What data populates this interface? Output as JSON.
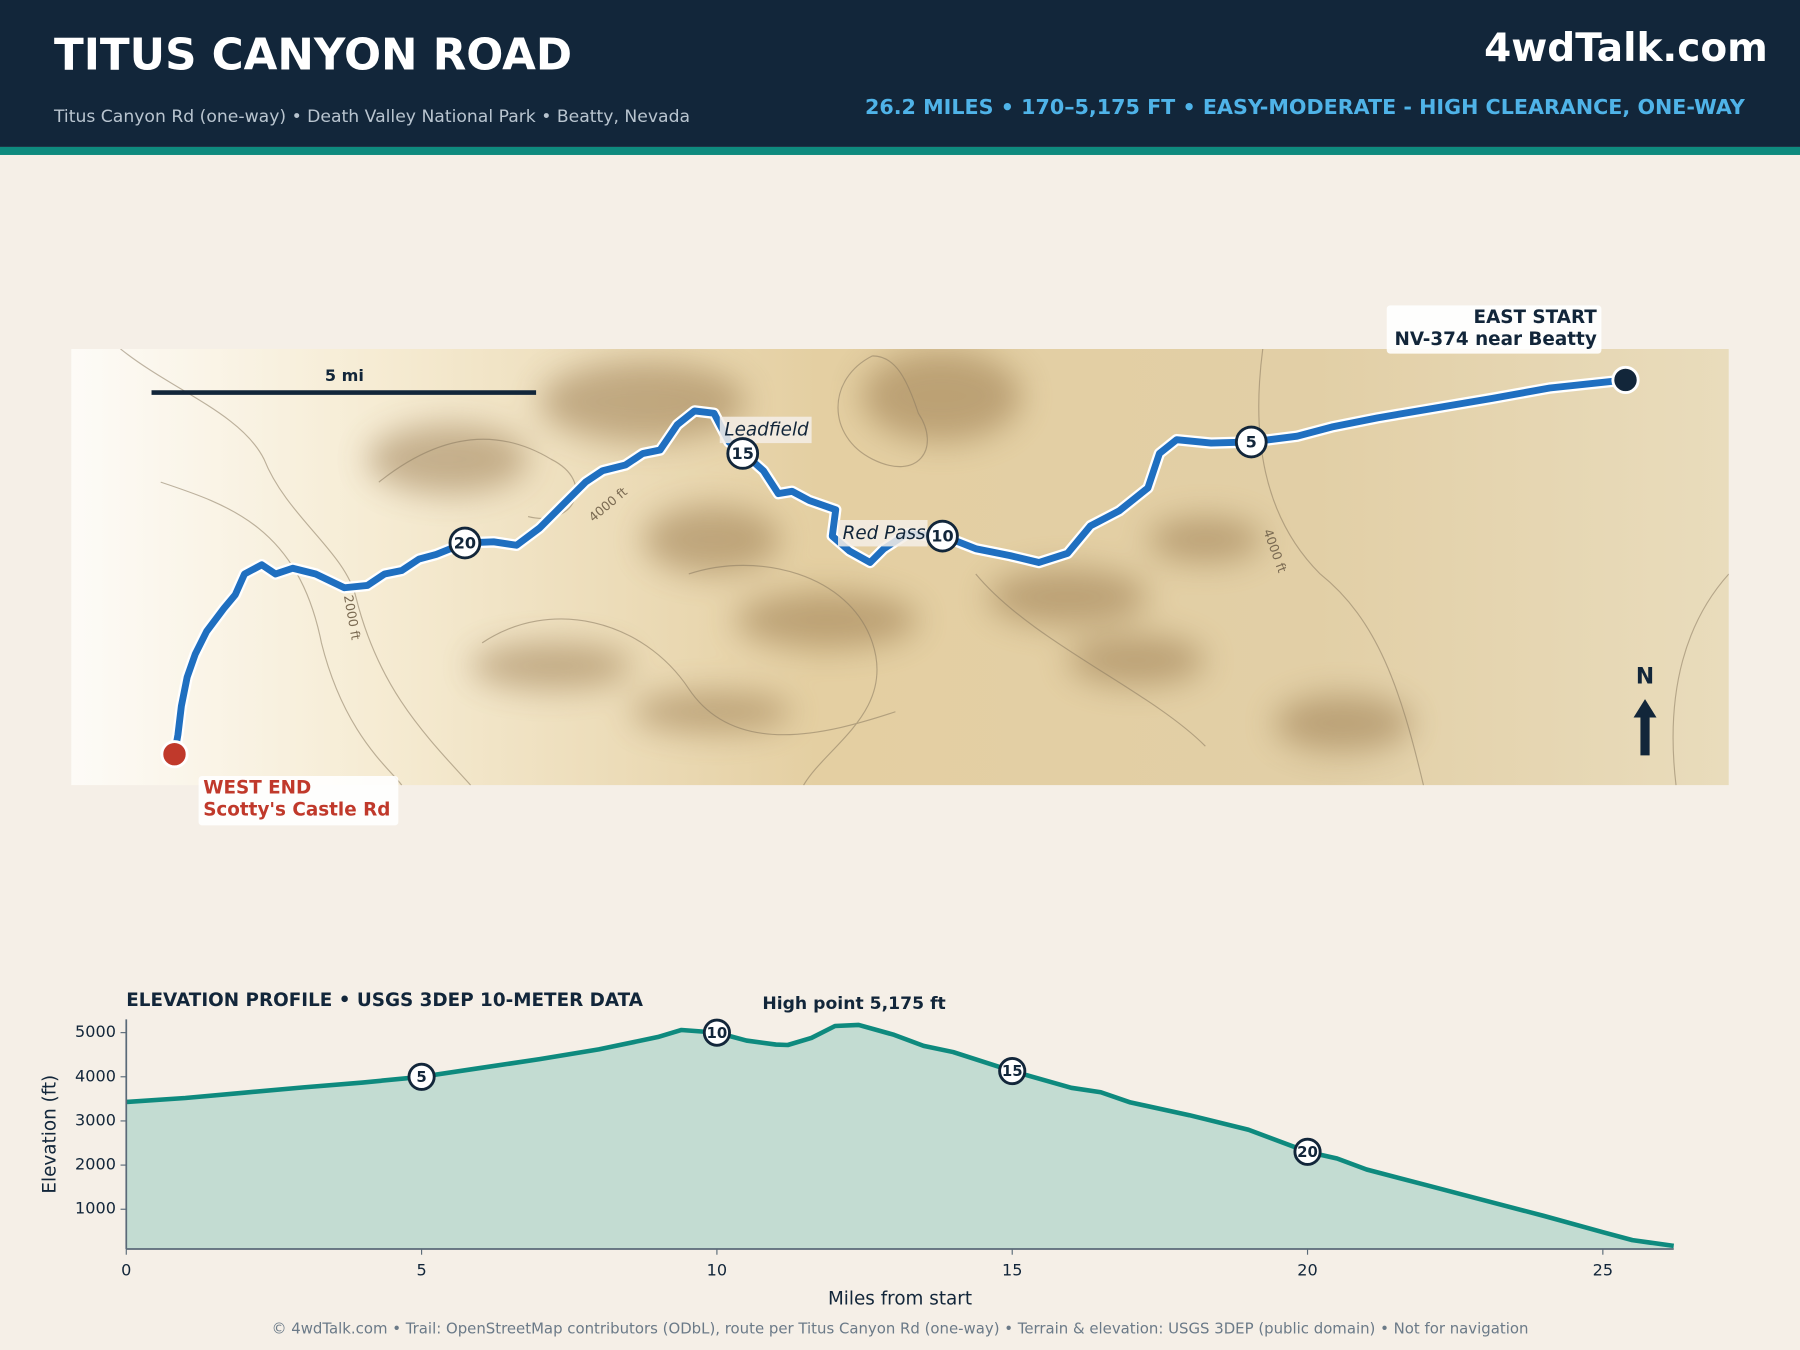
{
  "header": {
    "title": "TITUS CANYON ROAD",
    "subtitle": "Titus Canyon Rd (one-way)  •  Death Valley National Park  •  Beatty, Nevada",
    "brand": "4wdTalk.com",
    "stats": "26.2 MILES  •  170–5,175 FT  •  EASY-MODERATE - HIGH CLEARANCE, ONE-WAY"
  },
  "map": {
    "scale_label": "5 mi",
    "north": "N",
    "places": [
      "Leadfield",
      "Red Pass"
    ],
    "east_start": [
      "EAST START",
      "NV-374 near Beatty"
    ],
    "west_end": [
      "WEST END",
      "Scotty's Castle Rd"
    ],
    "contour_labels": [
      "4000 ft",
      "2000 ft",
      "4000 ft"
    ]
  },
  "chart_data": {
    "type": "area",
    "title": "ELEVATION PROFILE  •  USGS 3DEP 10-METER DATA",
    "x_label": "Miles from start",
    "y_label": "Elevation (ft)",
    "color": "#0e8a7e",
    "fill": "#c3dcd2",
    "x": [
      0,
      1,
      2,
      3,
      4,
      5,
      6,
      7,
      8,
      9,
      9.4,
      10,
      10.5,
      11,
      11.2,
      11.6,
      12,
      12.4,
      13,
      13.5,
      14,
      15,
      16,
      16.5,
      17,
      18,
      19,
      20,
      20.5,
      21,
      22,
      23,
      24,
      25,
      25.5,
      26.2
    ],
    "values": [
      3430,
      3520,
      3640,
      3760,
      3870,
      4000,
      4200,
      4400,
      4620,
      4900,
      5060,
      5000,
      4820,
      4730,
      4720,
      4880,
      5150,
      5175,
      4950,
      4700,
      4560,
      4130,
      3750,
      3650,
      3420,
      3130,
      2800,
      2300,
      2150,
      1900,
      1550,
      1200,
      850,
      480,
      300,
      170
    ],
    "xlim": [
      0,
      26.2
    ],
    "ylim": [
      100,
      5300
    ],
    "xticks": [
      0,
      5,
      10,
      15,
      20,
      25
    ],
    "yticks": [
      1000,
      2000,
      3000,
      4000,
      5000
    ],
    "mile_markers": [
      5,
      10,
      15,
      20
    ],
    "annotation": "High point 5,175 ft"
  },
  "footer": "© 4wdTalk.com  •  Trail: OpenStreetMap contributors (ODbL), route per Titus Canyon Rd (one-way)  •  Terrain & elevation: USGS 3DEP (public domain)  •  Not for navigation"
}
